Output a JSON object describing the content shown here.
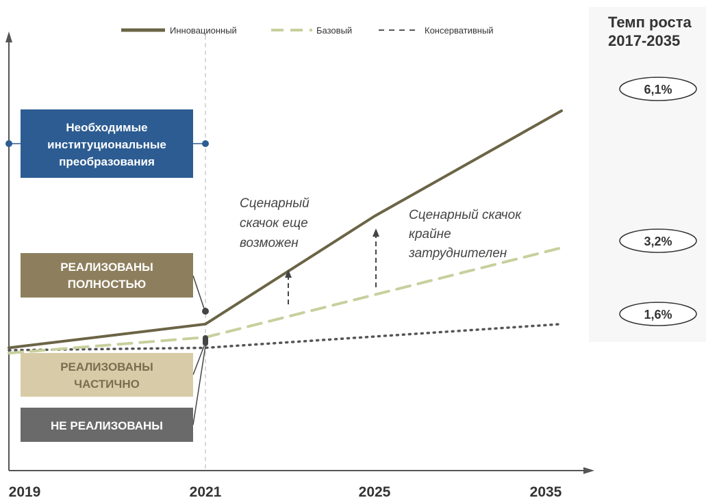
{
  "chart_data": {
    "type": "line",
    "title": "",
    "xlabel": "",
    "ylabel": "",
    "x_ticks": [
      "2019",
      "2021",
      "2025",
      "2035"
    ],
    "legend_position": "top",
    "grid": false,
    "series": [
      {
        "name": "Инновационный",
        "style": "solid",
        "color": "#6b6446",
        "points": [
          {
            "x": "2019",
            "y": 0.1
          },
          {
            "x": "2021",
            "y": 0.19
          },
          {
            "x": "2025",
            "y": 0.6
          },
          {
            "x": "2035",
            "y": 1.0
          }
        ],
        "growth_rate": "6,1%"
      },
      {
        "name": "Базовый",
        "style": "dashed",
        "color": "#c8cf9c",
        "points": [
          {
            "x": "2019",
            "y": 0.08
          },
          {
            "x": "2021",
            "y": 0.14
          },
          {
            "x": "2035",
            "y": 0.48
          }
        ],
        "growth_rate": "3,2%"
      },
      {
        "name": "Консервативный",
        "style": "dotted",
        "color": "#555555",
        "points": [
          {
            "x": "2019",
            "y": 0.07
          },
          {
            "x": "2021",
            "y": 0.1
          },
          {
            "x": "2035",
            "y": 0.19
          }
        ],
        "growth_rate": "1,6%"
      }
    ],
    "growth_header": [
      "Темп роста",
      "2017-2035"
    ],
    "annotations": [
      {
        "lines": [
          "Сценарный",
          "скачок еще",
          "возможен"
        ]
      },
      {
        "lines": [
          "Сценарный скачок",
          "крайне",
          "затруднителен"
        ]
      }
    ],
    "boxes": [
      {
        "lines": [
          "Необходимые",
          "институциональные",
          "преобразования"
        ],
        "color": "#2c5c92",
        "text_color": "#ffffff"
      },
      {
        "lines": [
          "РЕАЛИЗОВАНЫ",
          "ПОЛНОСТЬЮ"
        ],
        "color": "#8d7f5d",
        "text_color": "#ffffff"
      },
      {
        "lines": [
          "РЕАЛИЗОВАНЫ",
          "ЧАСТИЧНО"
        ],
        "color": "#d8cca8",
        "text_color": "#7a6d50"
      },
      {
        "lines": [
          "НЕ РЕАЛИЗОВАНЫ"
        ],
        "color": "#6a6a6a",
        "text_color": "#ffffff"
      }
    ]
  }
}
